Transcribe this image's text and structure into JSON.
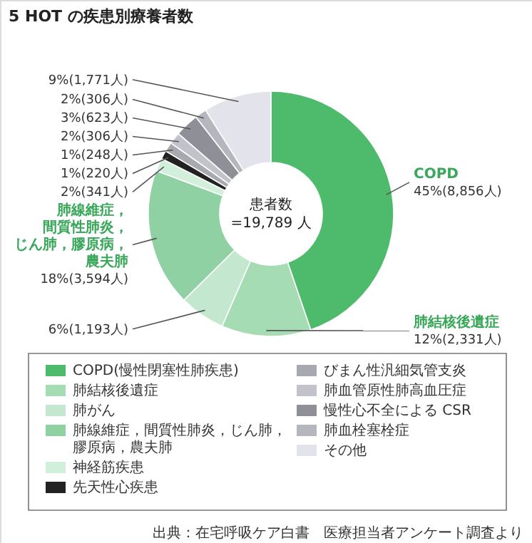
{
  "chart_data": {
    "type": "donut",
    "title": "5 HOT の疾患別療養者数",
    "categories": [
      "COPD(慢性閉塞性肺疾患)",
      "肺結核後遺症",
      "肺がん",
      "肺線維症，間質性肺炎，じん肺，膠原病，農夫肺",
      "神経筋疾患",
      "先天性心疾患",
      "びまん性汎細気管支炎",
      "肺血管原性肺高血圧症",
      "慢性心不全による CSR",
      "肺血栓塞栓症",
      "その他"
    ],
    "values": [
      8856,
      2331,
      1193,
      3594,
      341,
      220,
      248,
      306,
      623,
      306,
      1771
    ],
    "value_labels": [
      "45%(8,856人)",
      "12%(2,331人)",
      "6%(1,193人)",
      "18%(3,594人)",
      "2%(341人)",
      "1%(220人)",
      "1%(248人)",
      "2%(306人)",
      "3%(623人)",
      "2%(306人)",
      "9%(1,771人)"
    ],
    "colors": [
      "#4dbb6b",
      "#a6dcb4",
      "#c4e8cf",
      "#8fd1a2",
      "#d2efdb",
      "#222222",
      "#a8a8b0",
      "#c2c2ca",
      "#8f8f98",
      "#b6b6be",
      "#e3e3eb"
    ],
    "annotations": [
      "患者数 =19,789 人",
      "出典：在宅呼吸ケア白書　医療担当者アンケート調査より",
      {
        "text": "COPD",
        "x": "COPD(慢性閉塞性肺疾患)"
      },
      {
        "text": "肺結核後遺症",
        "x": "肺結核後遺症"
      },
      {
        "text": "肺線維症，間質性肺炎，じん肺，膠原病，農夫肺",
        "x": "肺線維症，間質性肺炎，じん肺，膠原病，農夫肺"
      }
    ],
    "legend": "bottom"
  }
}
